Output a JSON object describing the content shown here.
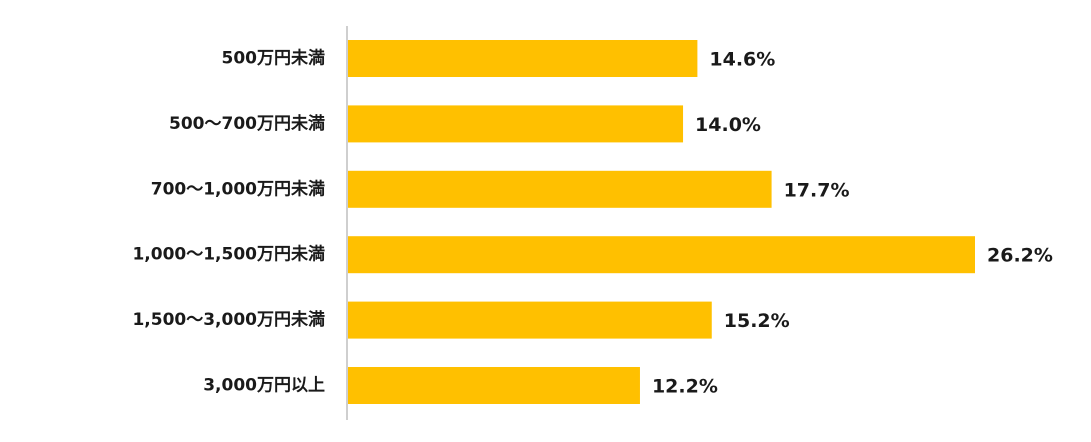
{
  "chart_data": {
    "type": "bar",
    "orientation": "horizontal",
    "categories": [
      "500万円未満",
      "500～700万円未満",
      "700～1,000万円未満",
      "1,000～1,500万円未満",
      "1,500～3,000万円未満",
      "3,000万円以上"
    ],
    "values": [
      14.6,
      14.0,
      17.7,
      26.2,
      15.2,
      12.2
    ],
    "value_labels": [
      "14.6%",
      "14.0%",
      "17.7%",
      "26.2%",
      "15.2%",
      "12.2%"
    ],
    "value_suffix": "%",
    "title": "",
    "xlabel": "",
    "ylabel": "",
    "xlim": [
      0,
      26.2
    ],
    "grid": false,
    "legend": "none",
    "bar_color": "#FFC000",
    "axis_color": "#bfbfbf",
    "text_color": "#1a1a1a"
  }
}
